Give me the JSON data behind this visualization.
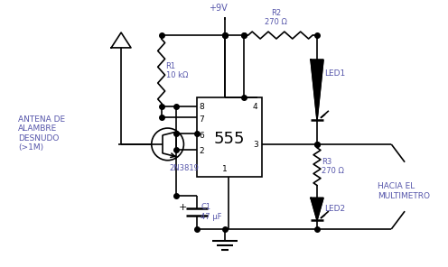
{
  "bg_color": "#ffffff",
  "line_color": "#000000",
  "text_color": "#5555aa",
  "labels": {
    "antenna": "ANTENA DE\nALAMBRE\nDESNUDO\n(>1M)",
    "vcc": "+9V",
    "R1": "R1\n10 kΩ",
    "R2": "R2\n270 Ω",
    "R3": "R3\n270 Ω",
    "C1": "C1\n47 μF",
    "transistor": "2N3819",
    "ic": "555",
    "led1": "LED1",
    "led2": "LED2",
    "output": "HACIA EL\nMULTIMETRO",
    "pin8": "8",
    "pin7": "7",
    "pin6": "6",
    "pin2": "2",
    "pin1": "1",
    "pin4": "4",
    "pin3": "3",
    "plus": "+"
  }
}
